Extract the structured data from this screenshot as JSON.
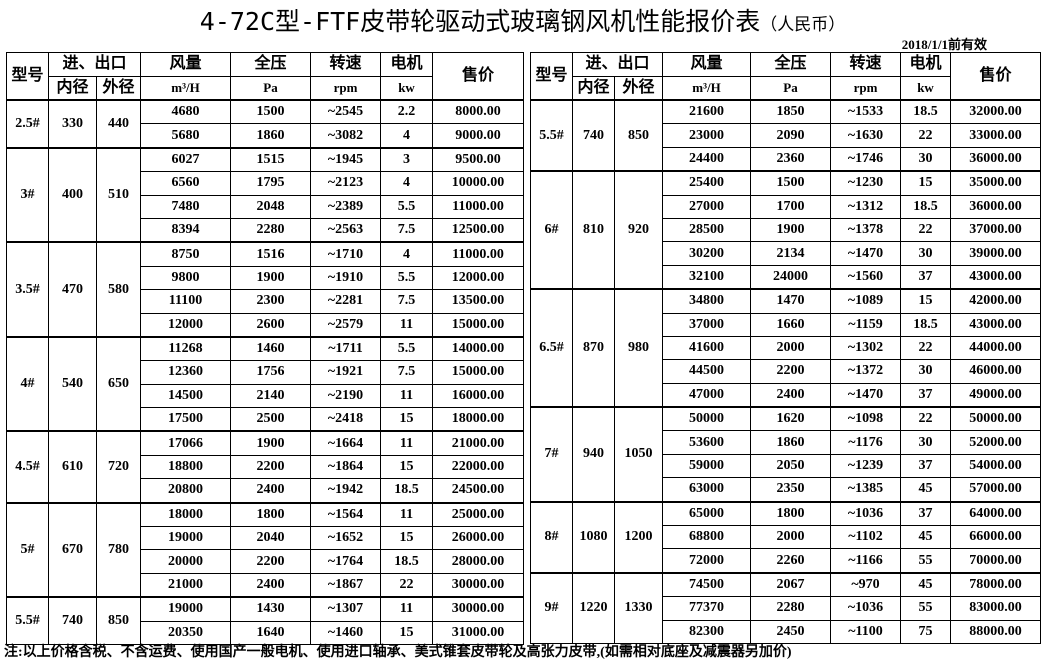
{
  "title": "4-72C型-FTF皮带轮驱动式玻璃钢风机性能报价表",
  "currency": "（人民币）",
  "valid": "2018/1/1前有效",
  "header": {
    "model": "型号",
    "port": "进、出口",
    "inner": "内径",
    "outer": "外径",
    "flow": "风量",
    "flow_unit": "m³/H",
    "pressure": "全压",
    "pressure_unit": "Pa",
    "speed": "转速",
    "speed_unit": "rpm",
    "motor": "电机",
    "motor_unit": "kw",
    "price": "售价"
  },
  "tables": [
    {
      "groups": [
        {
          "model": "2.5#",
          "inner": "330",
          "outer": "440",
          "rows": [
            [
              "4680",
              "1500",
              "~2545",
              "2.2",
              "8000.00"
            ],
            [
              "5680",
              "1860",
              "~3082",
              "4",
              "9000.00"
            ]
          ]
        },
        {
          "model": "3#",
          "inner": "400",
          "outer": "510",
          "rows": [
            [
              "6027",
              "1515",
              "~1945",
              "3",
              "9500.00"
            ],
            [
              "6560",
              "1795",
              "~2123",
              "4",
              "10000.00"
            ],
            [
              "7480",
              "2048",
              "~2389",
              "5.5",
              "11000.00"
            ],
            [
              "8394",
              "2280",
              "~2563",
              "7.5",
              "12500.00"
            ]
          ]
        },
        {
          "model": "3.5#",
          "inner": "470",
          "outer": "580",
          "rows": [
            [
              "8750",
              "1516",
              "~1710",
              "4",
              "11000.00"
            ],
            [
              "9800",
              "1900",
              "~1910",
              "5.5",
              "12000.00"
            ],
            [
              "11100",
              "2300",
              "~2281",
              "7.5",
              "13500.00"
            ],
            [
              "12000",
              "2600",
              "~2579",
              "11",
              "15000.00"
            ]
          ]
        },
        {
          "model": "4#",
          "inner": "540",
          "outer": "650",
          "rows": [
            [
              "11268",
              "1460",
              "~1711",
              "5.5",
              "14000.00"
            ],
            [
              "12360",
              "1756",
              "~1921",
              "7.5",
              "15000.00"
            ],
            [
              "14500",
              "2140",
              "~2190",
              "11",
              "16000.00"
            ],
            [
              "17500",
              "2500",
              "~2418",
              "15",
              "18000.00"
            ]
          ]
        },
        {
          "model": "4.5#",
          "inner": "610",
          "outer": "720",
          "rows": [
            [
              "17066",
              "1900",
              "~1664",
              "11",
              "21000.00"
            ],
            [
              "18800",
              "2200",
              "~1864",
              "15",
              "22000.00"
            ],
            [
              "20800",
              "2400",
              "~1942",
              "18.5",
              "24500.00"
            ]
          ]
        },
        {
          "model": "5#",
          "inner": "670",
          "outer": "780",
          "rows": [
            [
              "18000",
              "1800",
              "~1564",
              "11",
              "25000.00"
            ],
            [
              "19000",
              "2040",
              "~1652",
              "15",
              "26000.00"
            ],
            [
              "20000",
              "2200",
              "~1764",
              "18.5",
              "28000.00"
            ],
            [
              "21000",
              "2400",
              "~1867",
              "22",
              "30000.00"
            ]
          ]
        },
        {
          "model": "5.5#",
          "inner": "740",
          "outer": "850",
          "rows": [
            [
              "19000",
              "1430",
              "~1307",
              "11",
              "30000.00"
            ],
            [
              "20350",
              "1640",
              "~1460",
              "15",
              "31000.00"
            ]
          ]
        }
      ]
    },
    {
      "groups": [
        {
          "model": "5.5#",
          "inner": "740",
          "outer": "850",
          "rows": [
            [
              "21600",
              "1850",
              "~1533",
              "18.5",
              "32000.00"
            ],
            [
              "23000",
              "2090",
              "~1630",
              "22",
              "33000.00"
            ],
            [
              "24400",
              "2360",
              "~1746",
              "30",
              "36000.00"
            ]
          ]
        },
        {
          "model": "6#",
          "inner": "810",
          "outer": "920",
          "rows": [
            [
              "25400",
              "1500",
              "~1230",
              "15",
              "35000.00"
            ],
            [
              "27000",
              "1700",
              "~1312",
              "18.5",
              "36000.00"
            ],
            [
              "28500",
              "1900",
              "~1378",
              "22",
              "37000.00"
            ],
            [
              "30200",
              "2134",
              "~1470",
              "30",
              "39000.00"
            ],
            [
              "32100",
              "24000",
              "~1560",
              "37",
              "43000.00"
            ]
          ]
        },
        {
          "model": "6.5#",
          "inner": "870",
          "outer": "980",
          "rows": [
            [
              "34800",
              "1470",
              "~1089",
              "15",
              "42000.00"
            ],
            [
              "37000",
              "1660",
              "~1159",
              "18.5",
              "43000.00"
            ],
            [
              "41600",
              "2000",
              "~1302",
              "22",
              "44000.00"
            ],
            [
              "44500",
              "2200",
              "~1372",
              "30",
              "46000.00"
            ],
            [
              "47000",
              "2400",
              "~1470",
              "37",
              "49000.00"
            ]
          ]
        },
        {
          "model": "7#",
          "inner": "940",
          "outer": "1050",
          "rows": [
            [
              "50000",
              "1620",
              "~1098",
              "22",
              "50000.00"
            ],
            [
              "53600",
              "1860",
              "~1176",
              "30",
              "52000.00"
            ],
            [
              "59000",
              "2050",
              "~1239",
              "37",
              "54000.00"
            ],
            [
              "63000",
              "2350",
              "~1385",
              "45",
              "57000.00"
            ]
          ]
        },
        {
          "model": "8#",
          "inner": "1080",
          "outer": "1200",
          "rows": [
            [
              "65000",
              "1800",
              "~1036",
              "37",
              "64000.00"
            ],
            [
              "68800",
              "2000",
              "~1102",
              "45",
              "66000.00"
            ],
            [
              "72000",
              "2260",
              "~1166",
              "55",
              "70000.00"
            ]
          ]
        },
        {
          "model": "9#",
          "inner": "1220",
          "outer": "1330",
          "rows": [
            [
              "74500",
              "2067",
              "~970",
              "45",
              "78000.00"
            ],
            [
              "77370",
              "2280",
              "~1036",
              "55",
              "83000.00"
            ],
            [
              "82300",
              "2450",
              "~1100",
              "75",
              "88000.00"
            ]
          ]
        }
      ]
    }
  ],
  "note": "注:以上价格含税、不含运费、使用国产一般电机、使用进口轴承、美式锥套皮带轮及高张力皮带,(如需相对底座及减震器另加价)"
}
